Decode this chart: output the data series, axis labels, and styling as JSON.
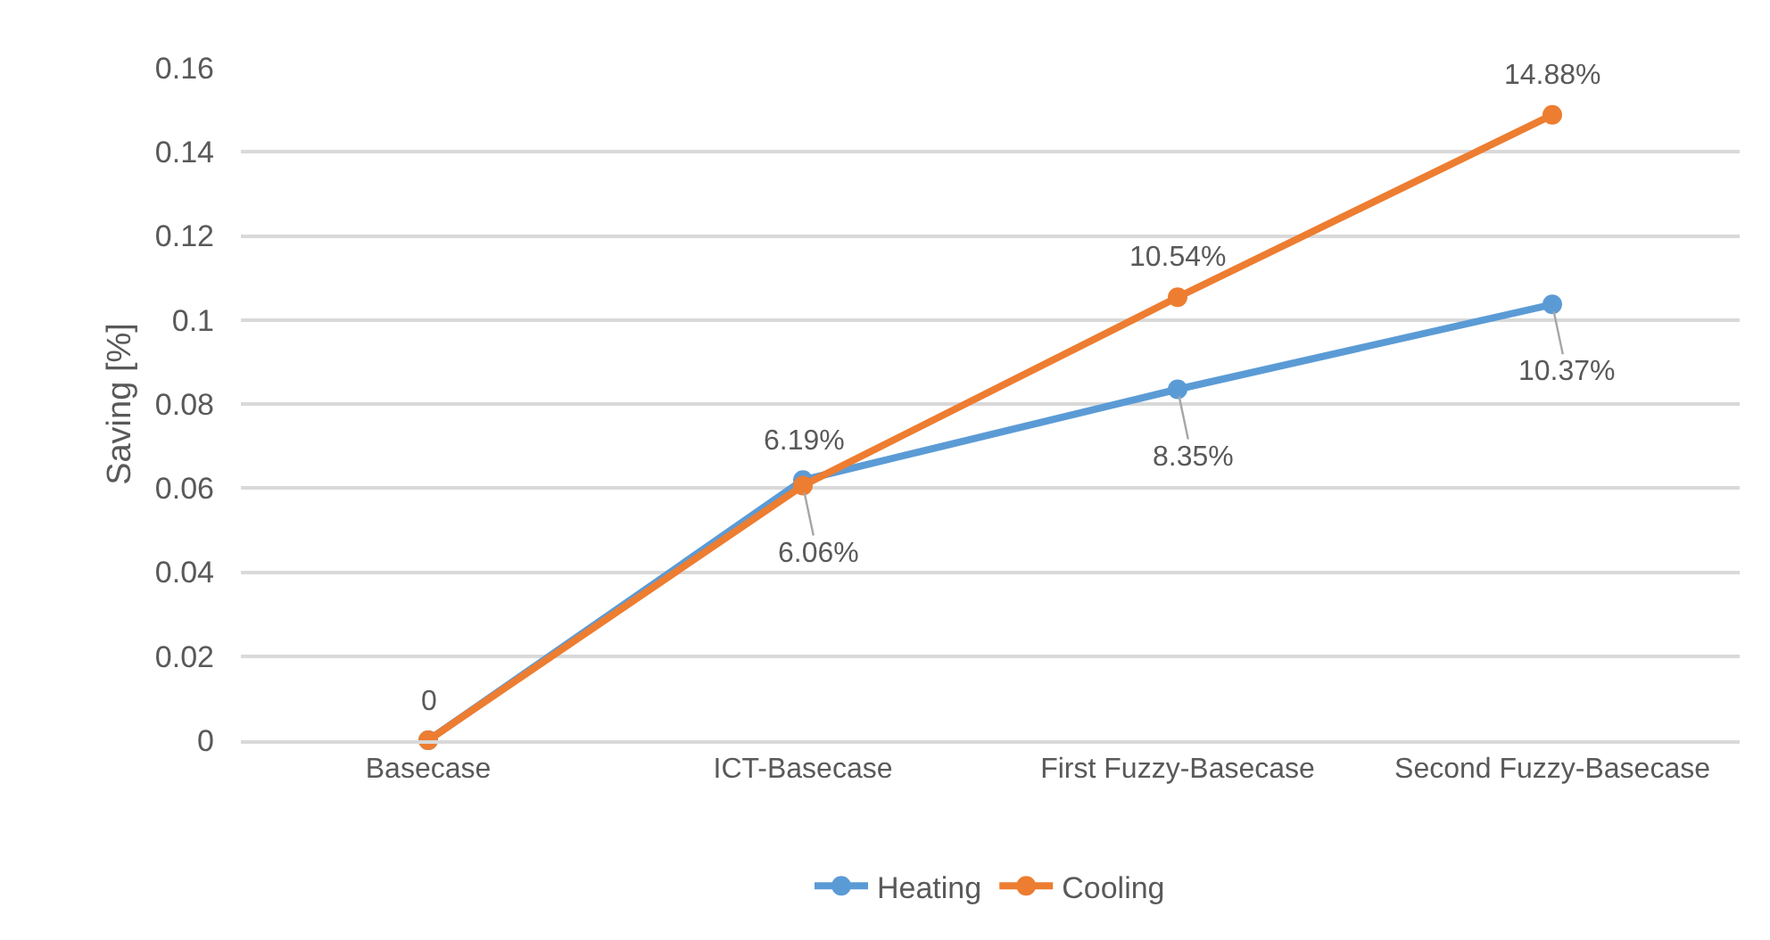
{
  "chart_data": {
    "type": "line",
    "ylabel": "Saving [%]",
    "categories": [
      "Basecase",
      "ICT-Basecase",
      "First Fuzzy-Basecase",
      "Second Fuzzy-Basecase"
    ],
    "series": [
      {
        "name": "Heating",
        "color": "#5b9bd5",
        "values": [
          0,
          0.0619,
          0.0835,
          0.1037
        ],
        "value_labels": [
          null,
          "6.19%",
          "8.35%",
          "10.37%"
        ]
      },
      {
        "name": "Cooling",
        "color": "#ed7d31",
        "values": [
          0,
          0.0606,
          0.1054,
          0.1488
        ],
        "value_labels": [
          "0",
          "6.06%",
          "10.54%",
          "14.88%"
        ]
      }
    ],
    "ylim": [
      0,
      0.16
    ],
    "yticks": [
      0,
      0.02,
      0.04,
      0.06,
      0.08,
      0.1,
      0.12,
      0.14,
      0.16
    ],
    "grid": "y",
    "legend": "bottom",
    "marker": "circle",
    "line_style": "solid"
  }
}
